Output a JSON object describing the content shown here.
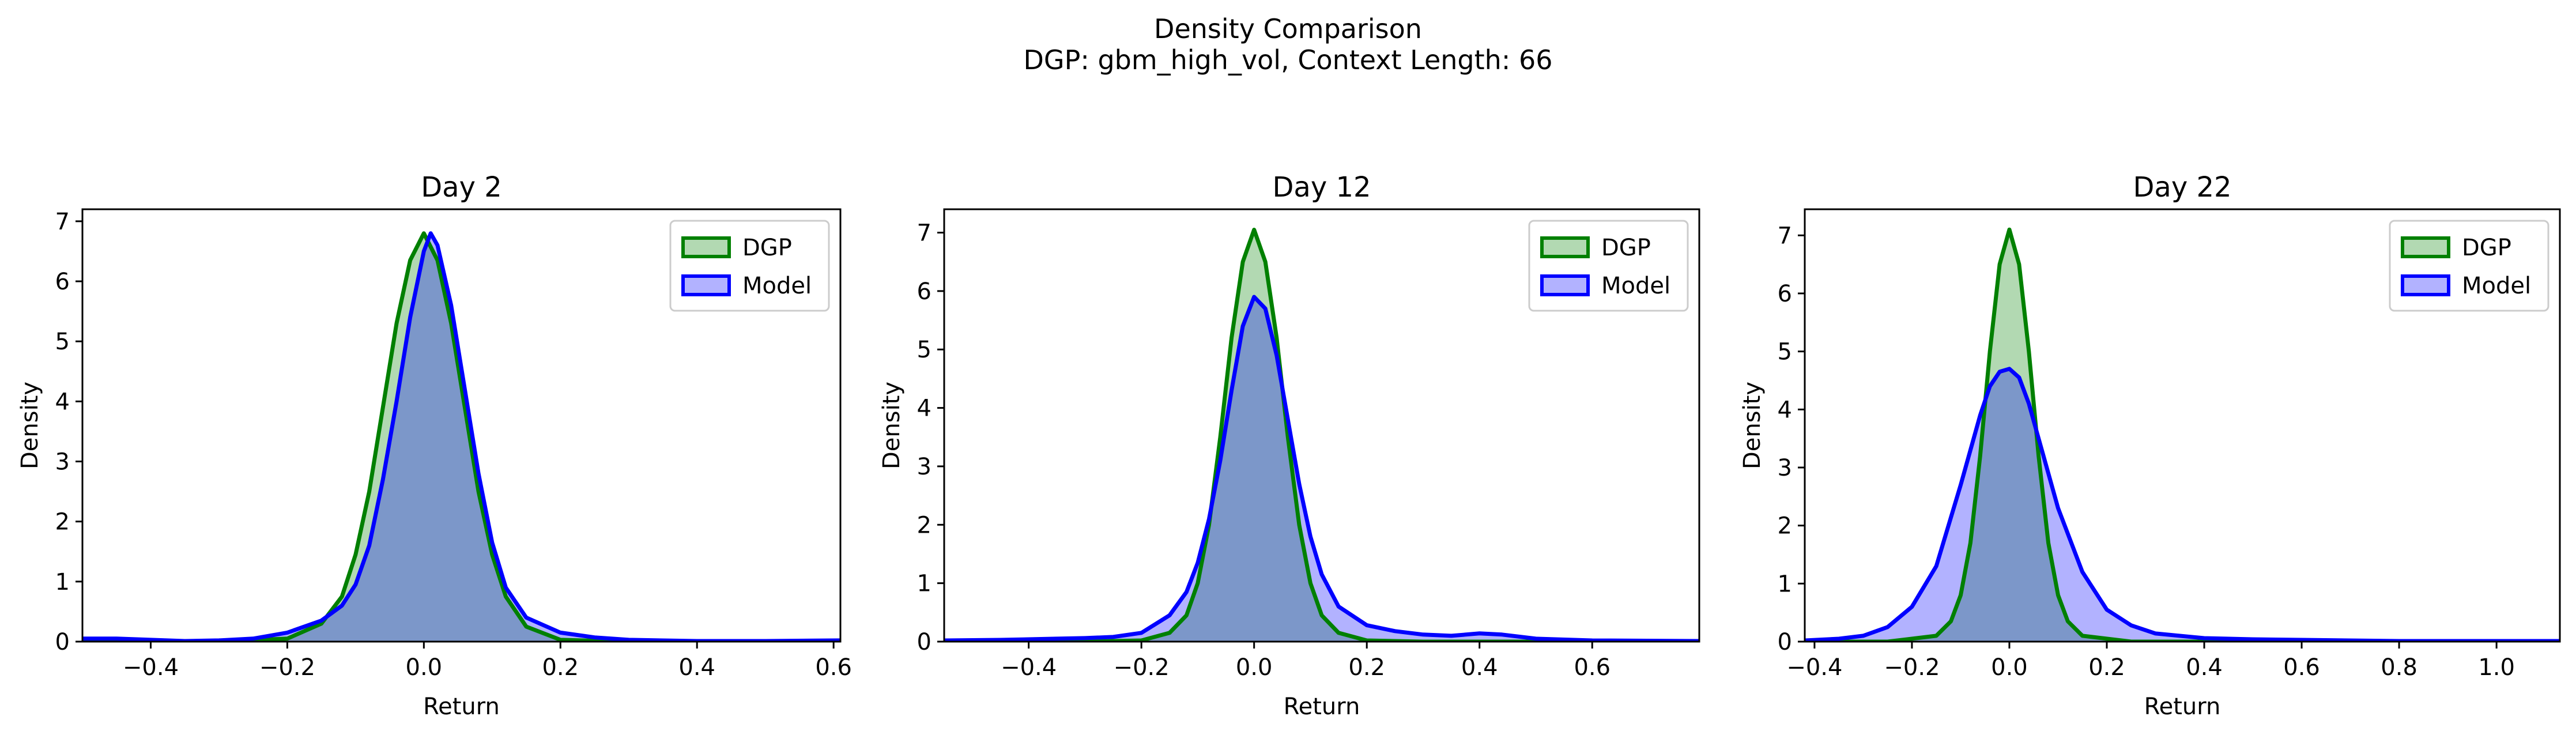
{
  "figure": {
    "title": "Density Comparison",
    "subtitle": "DGP: gbm_high_vol, Context Length: 66",
    "colors": {
      "dgp": "#008000",
      "model": "#0000ff"
    }
  },
  "chart_data": [
    {
      "type": "area",
      "title": "Day 2",
      "xlabel": "Return",
      "ylabel": "Density",
      "xlim": [
        -0.5,
        0.61
      ],
      "ylim": [
        0,
        7.2
      ],
      "xticks": [
        -0.4,
        -0.2,
        0.0,
        0.2,
        0.4,
        0.6
      ],
      "xtick_labels": [
        "−0.4",
        "−0.2",
        "0.0",
        "0.2",
        "0.4",
        "0.6"
      ],
      "yticks": [
        0,
        1,
        2,
        3,
        4,
        5,
        6,
        7
      ],
      "ytick_labels": [
        "0",
        "1",
        "2",
        "3",
        "4",
        "5",
        "6",
        "7"
      ],
      "grid": false,
      "legend": "top-right",
      "series": [
        {
          "name": "DGP",
          "x": [
            -0.5,
            -0.3,
            -0.2,
            -0.15,
            -0.12,
            -0.1,
            -0.08,
            -0.06,
            -0.04,
            -0.02,
            0.0,
            0.02,
            0.04,
            0.06,
            0.08,
            0.1,
            0.12,
            0.15,
            0.2,
            0.3,
            0.61
          ],
          "y": [
            0,
            0,
            0.05,
            0.3,
            0.75,
            1.45,
            2.5,
            3.9,
            5.3,
            6.35,
            6.8,
            6.35,
            5.3,
            3.9,
            2.5,
            1.45,
            0.75,
            0.25,
            0.03,
            0,
            0
          ]
        },
        {
          "name": "Model",
          "x": [
            -0.5,
            -0.45,
            -0.4,
            -0.35,
            -0.3,
            -0.25,
            -0.2,
            -0.15,
            -0.12,
            -0.1,
            -0.08,
            -0.06,
            -0.04,
            -0.02,
            0.0,
            0.01,
            0.02,
            0.04,
            0.06,
            0.08,
            0.1,
            0.12,
            0.15,
            0.2,
            0.25,
            0.3,
            0.4,
            0.5,
            0.61
          ],
          "y": [
            0.05,
            0.05,
            0.03,
            0.01,
            0.02,
            0.05,
            0.15,
            0.35,
            0.6,
            0.95,
            1.6,
            2.7,
            4.0,
            5.4,
            6.5,
            6.8,
            6.6,
            5.6,
            4.2,
            2.8,
            1.65,
            0.9,
            0.4,
            0.15,
            0.07,
            0.03,
            0.01,
            0.01,
            0.02
          ]
        }
      ]
    },
    {
      "type": "area",
      "title": "Day 12",
      "xlabel": "Return",
      "ylabel": "Density",
      "xlim": [
        -0.55,
        0.79
      ],
      "ylim": [
        0,
        7.4
      ],
      "xticks": [
        -0.4,
        -0.2,
        0.0,
        0.2,
        0.4,
        0.6
      ],
      "xtick_labels": [
        "−0.4",
        "−0.2",
        "0.0",
        "0.2",
        "0.4",
        "0.6"
      ],
      "yticks": [
        0,
        1,
        2,
        3,
        4,
        5,
        6,
        7
      ],
      "ytick_labels": [
        "0",
        "1",
        "2",
        "3",
        "4",
        "5",
        "6",
        "7"
      ],
      "grid": false,
      "legend": "top-right",
      "series": [
        {
          "name": "DGP",
          "x": [
            -0.55,
            -0.3,
            -0.2,
            -0.15,
            -0.12,
            -0.1,
            -0.08,
            -0.06,
            -0.04,
            -0.02,
            0.0,
            0.02,
            0.04,
            0.06,
            0.08,
            0.1,
            0.12,
            0.15,
            0.2,
            0.3,
            0.79
          ],
          "y": [
            0,
            0,
            0.02,
            0.15,
            0.45,
            1.0,
            2.0,
            3.5,
            5.2,
            6.5,
            7.05,
            6.5,
            5.2,
            3.5,
            2.0,
            1.0,
            0.45,
            0.15,
            0.02,
            0,
            0
          ]
        },
        {
          "name": "Model",
          "x": [
            -0.55,
            -0.45,
            -0.35,
            -0.3,
            -0.25,
            -0.2,
            -0.15,
            -0.12,
            -0.1,
            -0.08,
            -0.06,
            -0.04,
            -0.02,
            0.0,
            0.02,
            0.04,
            0.06,
            0.08,
            0.1,
            0.12,
            0.15,
            0.2,
            0.25,
            0.3,
            0.35,
            0.4,
            0.44,
            0.5,
            0.6,
            0.79
          ],
          "y": [
            0.02,
            0.03,
            0.05,
            0.06,
            0.08,
            0.15,
            0.45,
            0.85,
            1.35,
            2.1,
            3.1,
            4.3,
            5.4,
            5.9,
            5.7,
            4.9,
            3.8,
            2.7,
            1.8,
            1.15,
            0.6,
            0.28,
            0.18,
            0.12,
            0.1,
            0.14,
            0.12,
            0.05,
            0.02,
            0.01
          ]
        }
      ]
    },
    {
      "type": "area",
      "title": "Day 22",
      "xlabel": "Return",
      "ylabel": "Density",
      "xlim": [
        -0.42,
        1.13
      ],
      "ylim": [
        0,
        7.45
      ],
      "xticks": [
        -0.4,
        -0.2,
        0.0,
        0.2,
        0.4,
        0.6,
        0.8,
        1.0
      ],
      "xtick_labels": [
        "−0.4",
        "−0.2",
        "0.0",
        "0.2",
        "0.4",
        "0.6",
        "0.8",
        "1.0"
      ],
      "yticks": [
        0,
        1,
        2,
        3,
        4,
        5,
        6,
        7
      ],
      "ytick_labels": [
        "0",
        "1",
        "2",
        "3",
        "4",
        "5",
        "6",
        "7"
      ],
      "grid": false,
      "legend": "top-right",
      "series": [
        {
          "name": "DGP",
          "x": [
            -0.42,
            -0.25,
            -0.15,
            -0.12,
            -0.1,
            -0.08,
            -0.06,
            -0.04,
            -0.02,
            0.0,
            0.02,
            0.04,
            0.06,
            0.08,
            0.1,
            0.12,
            0.15,
            0.25,
            1.13
          ],
          "y": [
            0,
            0,
            0.1,
            0.35,
            0.8,
            1.7,
            3.2,
            5.0,
            6.5,
            7.1,
            6.5,
            5.0,
            3.2,
            1.7,
            0.8,
            0.35,
            0.1,
            0,
            0
          ]
        },
        {
          "name": "Model",
          "x": [
            -0.42,
            -0.35,
            -0.3,
            -0.25,
            -0.2,
            -0.15,
            -0.1,
            -0.08,
            -0.06,
            -0.04,
            -0.02,
            0.0,
            0.02,
            0.04,
            0.06,
            0.08,
            0.1,
            0.15,
            0.2,
            0.25,
            0.3,
            0.4,
            0.5,
            0.6,
            0.8,
            1.0,
            1.13
          ],
          "y": [
            0.02,
            0.05,
            0.1,
            0.25,
            0.6,
            1.3,
            2.7,
            3.3,
            3.9,
            4.4,
            4.65,
            4.7,
            4.55,
            4.1,
            3.5,
            2.9,
            2.3,
            1.2,
            0.55,
            0.28,
            0.14,
            0.06,
            0.04,
            0.03,
            0.01,
            0.01,
            0.01
          ]
        }
      ]
    }
  ]
}
